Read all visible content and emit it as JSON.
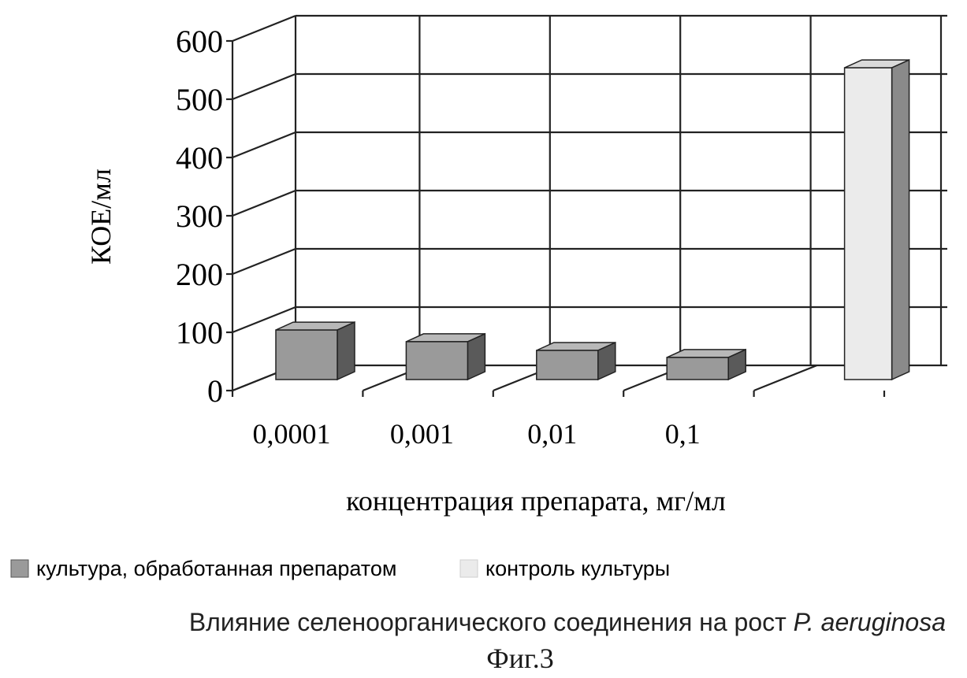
{
  "chart_data": {
    "type": "bar",
    "title": "",
    "xlabel": "концентрация препарата, мг/мл",
    "ylabel": "КОЕ/мл",
    "ylim": [
      0,
      600
    ],
    "yticks": [
      "0",
      "100",
      "200",
      "300",
      "400",
      "500",
      "600"
    ],
    "categories": [
      "0,0001",
      "0,001",
      "0,01",
      "0,1",
      ""
    ],
    "series": [
      {
        "name": "культура, обработанная препаратом",
        "values": [
          85,
          65,
          50,
          38,
          null
        ]
      },
      {
        "name": "контроль культуры",
        "values": [
          null,
          null,
          null,
          null,
          535
        ]
      }
    ],
    "grid": true,
    "legend_position": "bottom-left",
    "colors": {
      "treated_front": "#9a9a9a",
      "treated_top": "#b8b8b8",
      "treated_side": "#5a5a5a",
      "control_front": "#ebebeb",
      "control_top": "#dadada",
      "control_side": "#8a8a8a"
    }
  },
  "caption": {
    "text": "Влияние селеноорганического соединения на рост",
    "organism": "P. aeruginosa"
  },
  "figure_label": "Фиг.3"
}
